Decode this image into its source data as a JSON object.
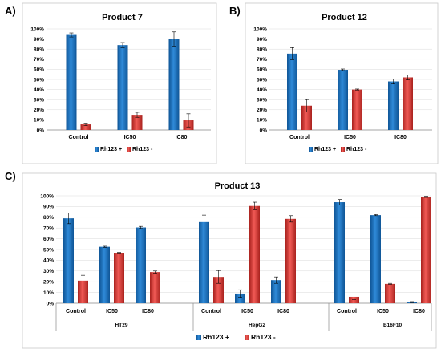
{
  "panels": {
    "a": {
      "letter": "A)"
    },
    "b": {
      "letter": "B)"
    },
    "c": {
      "letter": "C)"
    }
  },
  "colors": {
    "series1": "#1b76c4",
    "series1_dark": "#0f5596",
    "series2": "#e3403b",
    "series2_dark": "#a9221e"
  },
  "chart_data": [
    {
      "type": "bar",
      "title": "Product 7",
      "categories": [
        "Control",
        "IC50",
        "IC80"
      ],
      "ylim": [
        0,
        100
      ],
      "yticks": [
        "0%",
        "10%",
        "20%",
        "30%",
        "40%",
        "50%",
        "60%",
        "70%",
        "80%",
        "90%",
        "100%"
      ],
      "grid": true,
      "legend_position": "bottom",
      "series": [
        {
          "name": "Rh123 +",
          "values": [
            94,
            84,
            90
          ],
          "errors": [
            2,
            2.5,
            7
          ]
        },
        {
          "name": "Rh123 -",
          "values": [
            5.5,
            15,
            9.5
          ],
          "errors": [
            1.2,
            2.5,
            6.5
          ]
        }
      ]
    },
    {
      "type": "bar",
      "title": "Product 12",
      "categories": [
        "Control",
        "IC50",
        "IC80"
      ],
      "ylim": [
        0,
        100
      ],
      "yticks": [
        "0%",
        "10%",
        "20%",
        "30%",
        "40%",
        "50%",
        "60%",
        "70%",
        "80%",
        "90%",
        "100%"
      ],
      "grid": true,
      "legend_position": "bottom",
      "series": [
        {
          "name": "Rh123 +",
          "values": [
            75.5,
            59.5,
            48
          ],
          "errors": [
            6,
            0.8,
            2.5
          ]
        },
        {
          "name": "Rh123 -",
          "values": [
            24,
            40,
            52
          ],
          "errors": [
            6,
            0.5,
            2.5
          ]
        }
      ]
    },
    {
      "type": "bar",
      "title": "Product 13",
      "categories": [
        "Control",
        "IC50",
        "IC80",
        "Control",
        "IC50",
        "IC80",
        "Control",
        "IC50",
        "IC80"
      ],
      "groups": [
        "HT29",
        "HepG2",
        "B16F10"
      ],
      "ylim": [
        0,
        100
      ],
      "yticks": [
        "0%",
        "10%",
        "20%",
        "30%",
        "40%",
        "50%",
        "60%",
        "70%",
        "80%",
        "90%",
        "100%"
      ],
      "grid": true,
      "legend_position": "bottom",
      "series": [
        {
          "name": "Rh123 +",
          "values": [
            79,
            52.5,
            70.5,
            75.5,
            9,
            21.5,
            94,
            82,
            1
          ],
          "errors": [
            5,
            0.5,
            1,
            6.5,
            3.5,
            3,
            2.5,
            0.5,
            0.5
          ]
        },
        {
          "name": "Rh123 -",
          "values": [
            21,
            47,
            29,
            24.5,
            90.5,
            78.5,
            6,
            18,
            99
          ],
          "errors": [
            5,
            0.5,
            1,
            6,
            3.5,
            3,
            2.5,
            0.5,
            0.5
          ]
        }
      ]
    }
  ]
}
